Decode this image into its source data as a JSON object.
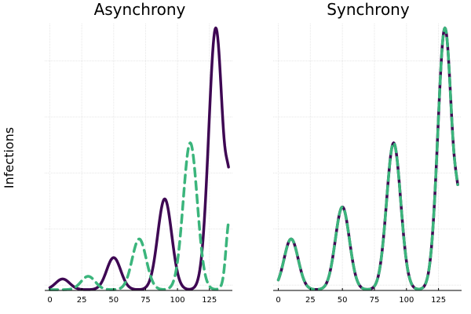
{
  "ylabel": "Infections",
  "chart_data": [
    {
      "type": "line",
      "title": "Asynchrony",
      "xlabel": "",
      "ylabel": "Infections",
      "xlim": [
        -4,
        143
      ],
      "ylim": [
        0,
        1
      ],
      "x_ticks": [
        0,
        25,
        50,
        75,
        100,
        125
      ],
      "x_tick_labels": [
        "0",
        "25",
        "50",
        "75",
        "100",
        "125"
      ],
      "grid": true,
      "legend": "none",
      "series": [
        {
          "color": "#3e0753",
          "style": "solid",
          "peaks": [
            [
              10,
              0.04
            ],
            [
              50,
              0.12
            ],
            [
              90,
              0.34
            ],
            [
              130,
              0.98
            ]
          ],
          "end_value": 0.33,
          "sample_points": [
            [
              0,
              0.007
            ],
            [
              10,
              0.04
            ],
            [
              30,
              0.006
            ],
            [
              50,
              0.12
            ],
            [
              70,
              0.007
            ],
            [
              90,
              0.34
            ],
            [
              110,
              0.006
            ],
            [
              130,
              0.98
            ],
            [
              140,
              0.33
            ]
          ]
        },
        {
          "color": "#3bb57c",
          "style": "dashed",
          "peaks": [
            [
              30,
              0.05
            ],
            [
              70,
              0.19
            ],
            [
              110,
              0.55
            ]
          ],
          "end_value": 0.31,
          "sample_points": [
            [
              0,
              0.004
            ],
            [
              10,
              0.003
            ],
            [
              30,
              0.05
            ],
            [
              50,
              0.005
            ],
            [
              70,
              0.19
            ],
            [
              90,
              0.008
            ],
            [
              110,
              0.55
            ],
            [
              125,
              0.04
            ],
            [
              140,
              0.31
            ]
          ]
        }
      ]
    },
    {
      "type": "line",
      "title": "Synchrony",
      "xlabel": "",
      "ylabel": "",
      "xlim": [
        -4,
        143
      ],
      "ylim": [
        0,
        1
      ],
      "x_ticks": [
        0,
        25,
        50,
        75,
        100,
        125
      ],
      "x_tick_labels": [
        "0",
        "25",
        "50",
        "75",
        "100",
        "125"
      ],
      "grid": true,
      "legend": "none",
      "series": [
        {
          "color": "#3e0753",
          "style": "solid",
          "peaks": [
            [
              10,
              0.19
            ],
            [
              50,
              0.31
            ],
            [
              90,
              0.55
            ],
            [
              130,
              0.98
            ]
          ],
          "end_value": 0.25,
          "sample_points": [
            [
              0,
              0.02
            ],
            [
              10,
              0.19
            ],
            [
              30,
              0.006
            ],
            [
              50,
              0.31
            ],
            [
              70,
              0.01
            ],
            [
              90,
              0.55
            ],
            [
              110,
              0.01
            ],
            [
              130,
              0.98
            ],
            [
              140,
              0.25
            ]
          ]
        },
        {
          "color": "#3bb57c",
          "style": "dashed",
          "peaks": [
            [
              10,
              0.19
            ],
            [
              50,
              0.31
            ],
            [
              90,
              0.55
            ],
            [
              130,
              0.98
            ]
          ],
          "end_value": 0.25,
          "sample_points": [
            [
              0,
              0.02
            ],
            [
              10,
              0.19
            ],
            [
              30,
              0.006
            ],
            [
              50,
              0.31
            ],
            [
              70,
              0.01
            ],
            [
              90,
              0.55
            ],
            [
              110,
              0.01
            ],
            [
              130,
              0.98
            ],
            [
              140,
              0.25
            ]
          ]
        }
      ]
    }
  ]
}
